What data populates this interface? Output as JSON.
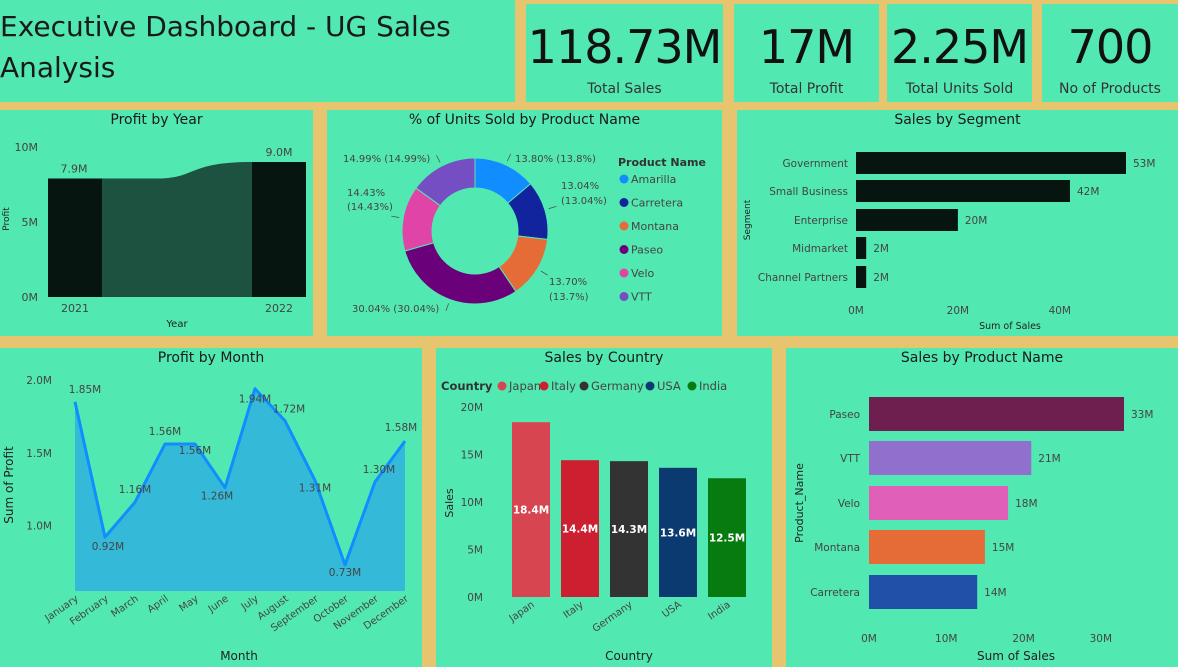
{
  "header": {
    "title_line1": "Executive Dashboard - UG Sales",
    "title_line2": "Analysis"
  },
  "kpis": [
    {
      "value": "118.73M",
      "label": "Total Sales"
    },
    {
      "value": "17M",
      "label": "Total Profit"
    },
    {
      "value": "2.25M",
      "label": "Total Units Sold"
    },
    {
      "value": "700",
      "label": "No of Products"
    }
  ],
  "colors": {
    "background": "#52e8b2",
    "border": "#e6c56e",
    "dark_bar": "#06150f"
  },
  "chart_data": [
    {
      "id": "profit_by_year",
      "type": "area",
      "title": "Profit by Year",
      "xlabel": "Year",
      "ylabel": "Profit",
      "categories": [
        "2021",
        "2022"
      ],
      "values": [
        7.9,
        9.0
      ],
      "data_labels": [
        "7.9M",
        "9.0M"
      ],
      "yticks": [
        "0M",
        "5M",
        "10M"
      ],
      "ylim": [
        0,
        10
      ]
    },
    {
      "id": "units_by_product",
      "type": "pie",
      "title": "% of Units Sold by Product Name",
      "legend_title": "Product Name",
      "slices": [
        {
          "name": "Amarilla",
          "value": 13.8,
          "label": "13.80% (13.8%)",
          "color": "#118dff"
        },
        {
          "name": "Carretera",
          "value": 13.04,
          "label": "13.04% (13.04%)",
          "color": "#12239e"
        },
        {
          "name": "Montana",
          "value": 13.7,
          "label": "13.70% (13.7%)",
          "color": "#e66c37"
        },
        {
          "name": "Paseo",
          "value": 30.04,
          "label": "30.04% (30.04%)",
          "color": "#6b007b"
        },
        {
          "name": "Velo",
          "value": 14.43,
          "label": "14.43% (14.43%)",
          "color": "#e044a7"
        },
        {
          "name": "VTT",
          "value": 14.99,
          "label": "14.99% (14.99%)",
          "color": "#744ec2"
        }
      ]
    },
    {
      "id": "sales_by_segment",
      "type": "bar",
      "title": "Sales by Segment",
      "xlabel": "Sum of Sales",
      "ylabel": "Segment",
      "categories": [
        "Government",
        "Small Business",
        "Enterprise",
        "Midmarket",
        "Channel Partners"
      ],
      "values": [
        53,
        42,
        20,
        2,
        2
      ],
      "data_labels": [
        "53M",
        "42M",
        "20M",
        "2M",
        "2M"
      ],
      "xticks": [
        "0M",
        "20M",
        "40M"
      ],
      "xlim": [
        0,
        55
      ]
    },
    {
      "id": "profit_by_month",
      "type": "area",
      "title": "Profit by Month",
      "xlabel": "Month",
      "ylabel": "Sum of Profit",
      "categories": [
        "January",
        "February",
        "March",
        "April",
        "May",
        "June",
        "July",
        "August",
        "September",
        "October",
        "November",
        "December"
      ],
      "values": [
        1.85,
        0.92,
        1.16,
        1.56,
        1.56,
        1.26,
        1.94,
        1.72,
        1.31,
        0.73,
        1.3,
        1.58
      ],
      "data_labels": [
        "1.85M",
        "0.92M",
        "1.16M",
        "1.56M",
        "1.56M",
        "1.26M",
        "1.94M",
        "1.72M",
        "1.31M",
        "0.73M",
        "1.30M",
        "1.58M"
      ],
      "yticks": [
        "1.0M",
        "1.5M",
        "2.0M"
      ],
      "ylim": [
        0.55,
        2.0
      ]
    },
    {
      "id": "sales_by_country",
      "type": "bar",
      "title": "Sales by Country",
      "xlabel": "Country",
      "ylabel": "Sales",
      "legend_title": "Country",
      "categories": [
        "Japan",
        "Italy",
        "Germany",
        "USA",
        "India"
      ],
      "values": [
        18.4,
        14.4,
        14.3,
        13.6,
        12.5
      ],
      "data_labels": [
        "18.4M",
        "14.4M",
        "14.3M",
        "13.6M",
        "12.5M"
      ],
      "colors": [
        "#d64550",
        "#cc1f2f",
        "#333333",
        "#0a3a70",
        "#067c10"
      ],
      "yticks": [
        "0M",
        "5M",
        "10M",
        "15M",
        "20M"
      ],
      "ylim": [
        0,
        20
      ]
    },
    {
      "id": "sales_by_product",
      "type": "bar",
      "title": "Sales by Product Name",
      "xlabel": "Sum of Sales",
      "ylabel": "Product_Name",
      "categories": [
        "Paseo",
        "VTT",
        "Velo",
        "Montana",
        "Carretera"
      ],
      "values": [
        33,
        21,
        18,
        15,
        14
      ],
      "data_labels": [
        "33M",
        "21M",
        "18M",
        "15M",
        "14M"
      ],
      "colors": [
        "#6e1f50",
        "#9070cc",
        "#e060b8",
        "#e66c37",
        "#2050a8"
      ],
      "xticks": [
        "0M",
        "10M",
        "20M",
        "30M"
      ],
      "xlim": [
        0,
        35
      ]
    }
  ]
}
